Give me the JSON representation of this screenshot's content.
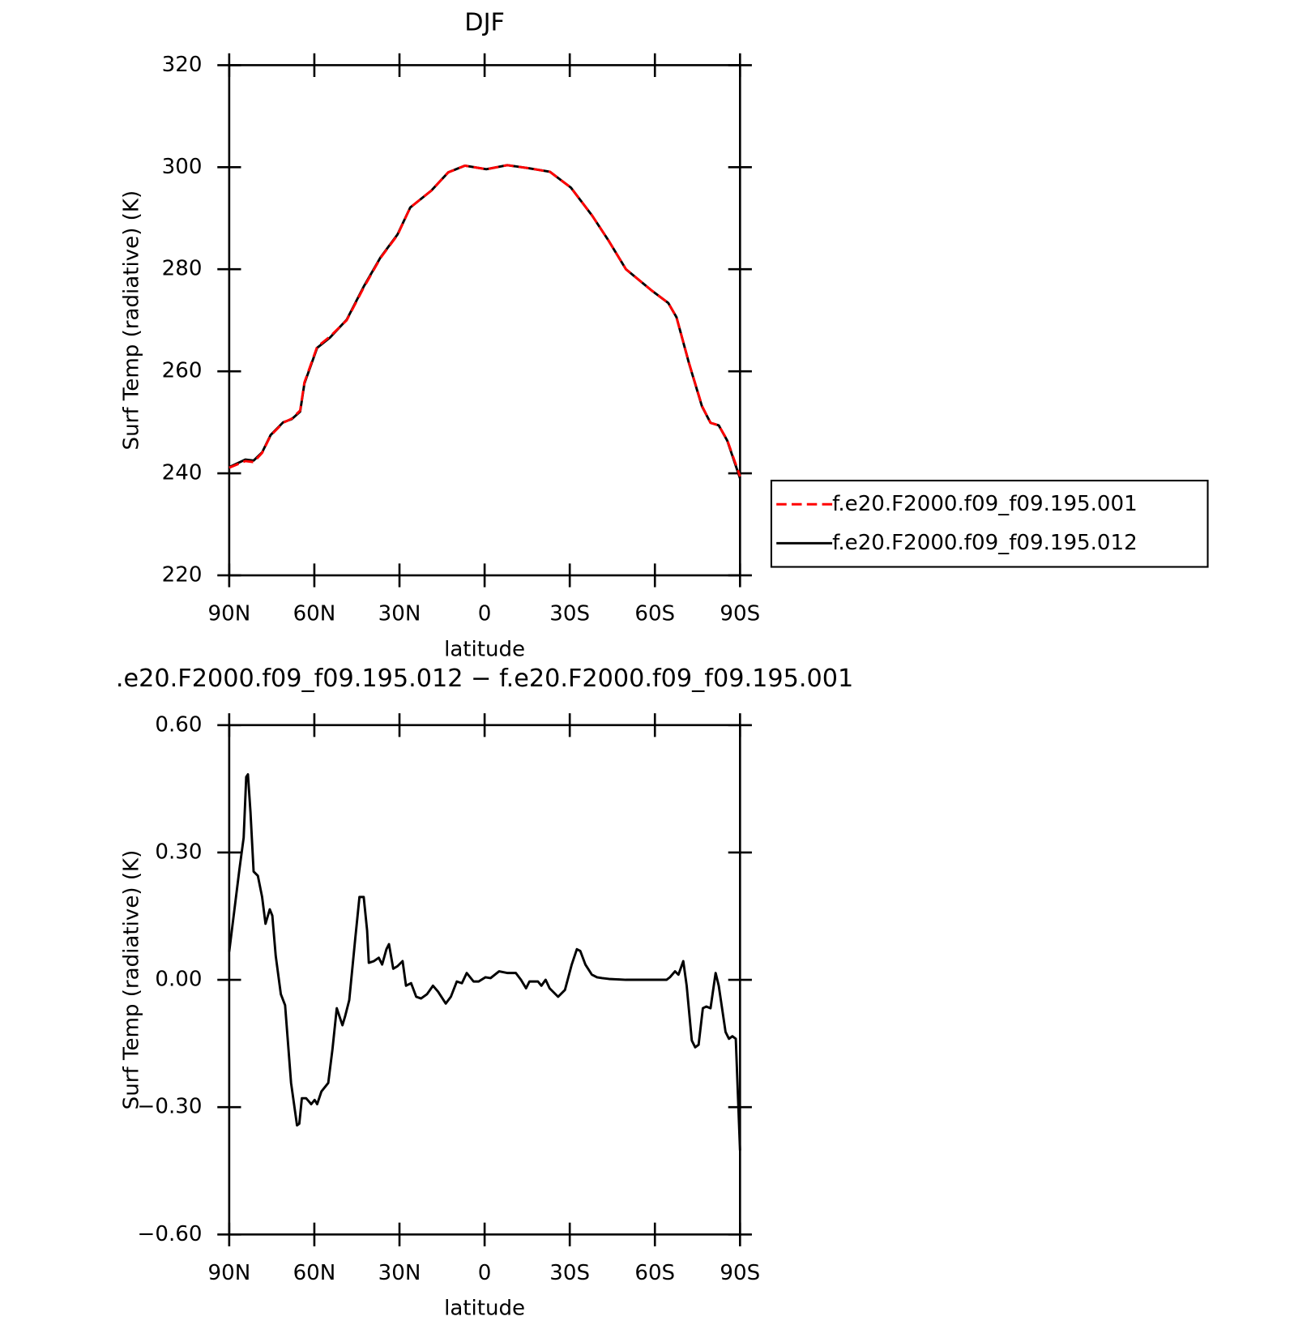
{
  "chart_data": [
    {
      "type": "line",
      "title": "DJF",
      "xlabel": "latitude",
      "ylabel": "Surf Temp (radiative) (K)",
      "x": [
        90,
        84.3,
        81.4,
        78.4,
        75.4,
        71,
        68,
        65,
        63.5,
        59,
        54.5,
        48.6,
        42.6,
        36.7,
        30.7,
        26.2,
        18.8,
        12.8,
        6.9,
        -0.6,
        -8,
        -15.5,
        -23,
        -30.4,
        -37.9,
        -43.8,
        -49.8,
        -58.7,
        -64.7,
        -67.6,
        -72.1,
        -76.6,
        -79.6,
        -82.5,
        -85.5,
        -90
      ],
      "series": [
        {
          "name": "f.e20.F2000.f09_f09.195.001",
          "color": "#ff0000",
          "dash": true,
          "values": [
            241.1,
            242.4,
            242.2,
            244,
            247.4,
            249.9,
            250.7,
            252.3,
            257.8,
            264.8,
            266.8,
            270,
            276.4,
            282.2,
            286.7,
            292.1,
            295.4,
            299,
            300.3,
            299.6,
            300.4,
            299.8,
            299.1,
            296,
            290.5,
            285.5,
            280,
            275.9,
            273.4,
            270.6,
            261.5,
            253.2,
            249.9,
            249.4,
            246.5,
            239.4
          ]
        },
        {
          "name": "f.e20.F2000.f09_f09.195.012",
          "color": "#000000",
          "dash": false,
          "values": [
            241.2,
            242.7,
            242.5,
            244.1,
            247.5,
            250,
            250.6,
            252.1,
            257.6,
            264.6,
            266.6,
            270.1,
            276.6,
            282.3,
            286.8,
            292.1,
            295.4,
            299,
            300.3,
            299.6,
            300.4,
            299.8,
            299.1,
            296,
            290.5,
            285.5,
            280,
            275.9,
            273.4,
            270.6,
            261.4,
            253.1,
            249.9,
            249.4,
            246.4,
            239.0
          ]
        }
      ],
      "xlim": [
        90,
        -90
      ],
      "xticks": [
        {
          "value": 90,
          "label": "90N"
        },
        {
          "value": 60,
          "label": "60N"
        },
        {
          "value": 30,
          "label": "30N"
        },
        0,
        {
          "value": -30,
          "label": "30S"
        },
        {
          "value": -60,
          "label": "60S"
        },
        {
          "value": -90,
          "label": "90S"
        }
      ],
      "ylim": [
        220,
        320
      ],
      "yticks": [
        220,
        240,
        260,
        280,
        300,
        320
      ],
      "legend": "right"
    },
    {
      "type": "line",
      "title": ".e20.F2000.f09_f09.195.012 − f.e20.F2000.f09_f09.195.001",
      "xlabel": "latitude",
      "ylabel": "Surf Temp (radiative) (K)",
      "x": [
        90,
        86.4,
        84.9,
        84.0,
        83.4,
        82.5,
        81.4,
        79.9,
        78.4,
        77.2,
        75.7,
        74.8,
        73.6,
        71.8,
        70.3,
        68.2,
        66.1,
        65.3,
        64.4,
        62.9,
        61.1,
        59.9,
        59.0,
        57.5,
        55.1,
        53.6,
        52.1,
        50.1,
        49.2,
        47.7,
        45.6,
        44.1,
        42.6,
        41.4,
        40.8,
        39.0,
        37.3,
        36.1,
        34.6,
        33.7,
        32.2,
        30.7,
        28.9,
        27.7,
        25.9,
        24.1,
        22.4,
        20.3,
        18.2,
        16.4,
        13.7,
        11.9,
        9.8,
        8.0,
        6.3,
        3.9,
        2.1,
        -0.3,
        -2.1,
        -5.1,
        -8.1,
        -11.0,
        -12.8,
        -14.6,
        -15.8,
        -18.8,
        -20.0,
        -21.5,
        -22.9,
        -25.9,
        -28.3,
        -30.7,
        -32.5,
        -33.7,
        -35.5,
        -37.8,
        -39.6,
        -41.4,
        -43.8,
        -49.8,
        -55.7,
        -64.1,
        -65.3,
        -67.1,
        -68.3,
        -70.0,
        -71.2,
        -73.0,
        -74.2,
        -75.4,
        -76.9,
        -78.1,
        -79.6,
        -81.4,
        -82.5,
        -84.9,
        -86.1,
        -87.3,
        -88.5,
        -90
      ],
      "series": [
        {
          "color": "#000000",
          "dash": false,
          "values": [
            0.066,
            0.26,
            0.335,
            0.478,
            0.484,
            0.395,
            0.255,
            0.245,
            0.195,
            0.132,
            0.166,
            0.151,
            0.056,
            -0.034,
            -0.06,
            -0.243,
            -0.343,
            -0.339,
            -0.279,
            -0.279,
            -0.293,
            -0.283,
            -0.293,
            -0.263,
            -0.243,
            -0.163,
            -0.067,
            -0.107,
            -0.087,
            -0.048,
            0.096,
            0.195,
            0.195,
            0.116,
            0.04,
            0.044,
            0.052,
            0.036,
            0.072,
            0.084,
            0.026,
            0.032,
            0.044,
            -0.014,
            -0.008,
            -0.04,
            -0.044,
            -0.034,
            -0.014,
            -0.028,
            -0.056,
            -0.04,
            -0.004,
            -0.008,
            0.016,
            -0.004,
            -0.004,
            0.006,
            0.004,
            0.02,
            0.016,
            0.016,
            0.0,
            -0.02,
            -0.004,
            -0.004,
            -0.014,
            0.0,
            -0.02,
            -0.04,
            -0.024,
            0.036,
            0.072,
            0.068,
            0.036,
            0.012,
            0.006,
            0.004,
            0.002,
            0.0,
            0.0,
            0.0,
            0.006,
            0.02,
            0.012,
            0.044,
            -0.014,
            -0.143,
            -0.159,
            -0.153,
            -0.067,
            -0.063,
            -0.067,
            0.016,
            -0.014,
            -0.123,
            -0.139,
            -0.133,
            -0.139,
            -0.402
          ]
        }
      ],
      "xlim": [
        90,
        -90
      ],
      "xticks": [
        {
          "value": 90,
          "label": "90N"
        },
        {
          "value": 60,
          "label": "60N"
        },
        {
          "value": 30,
          "label": "30N"
        },
        0,
        {
          "value": -30,
          "label": "30S"
        },
        {
          "value": -60,
          "label": "60S"
        },
        {
          "value": -90,
          "label": "90S"
        }
      ],
      "ylim": [
        -0.6,
        0.6
      ],
      "yticks": [
        {
          "value": -0.6,
          "label": "−0.60"
        },
        {
          "value": -0.3,
          "label": "−0.30"
        },
        {
          "value": 0,
          "label": "0.00"
        },
        {
          "value": 0.3,
          "label": "0.30"
        },
        {
          "value": 0.6,
          "label": "0.60"
        }
      ]
    }
  ]
}
